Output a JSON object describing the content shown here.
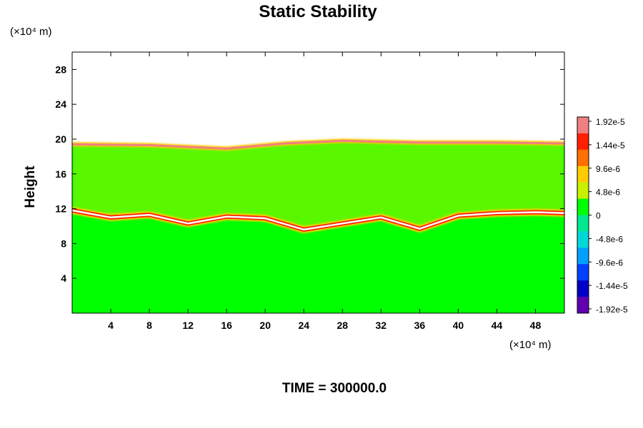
{
  "chart_data": {
    "type": "heatmap",
    "title": "Static Stability",
    "ylabel": "Height",
    "y_unit": "(×10⁴ m)",
    "x_unit": "(×10⁴ m)",
    "xlim": [
      0,
      51
    ],
    "ylim": [
      0,
      30
    ],
    "x_ticks": [
      "4",
      "8",
      "12",
      "16",
      "20",
      "24",
      "28",
      "32",
      "36",
      "40",
      "44",
      "48"
    ],
    "x_tick_values": [
      4,
      8,
      12,
      16,
      20,
      24,
      28,
      32,
      36,
      40,
      44,
      48
    ],
    "y_ticks": [
      "4",
      "8",
      "12",
      "16",
      "20",
      "24",
      "28"
    ],
    "y_tick_values": [
      4,
      8,
      12,
      16,
      20,
      24,
      28
    ],
    "colorbar": {
      "labels": [
        "1.92e-5",
        "1.44e-5",
        "9.6e-6",
        "4.8e-6",
        "0",
        "-4.8e-6",
        "-9.6e-6",
        "-1.44e-5",
        "-1.92e-5"
      ],
      "values": [
        1.92e-05,
        1.44e-05,
        9.6e-06,
        4.8e-06,
        0,
        -4.8e-06,
        -9.6e-06,
        -1.44e-05,
        -1.92e-05
      ],
      "colors": [
        "#f08080",
        "#ff2000",
        "#ff7000",
        "#ffcc00",
        "#c8f000",
        "#00ff00",
        "#00e890",
        "#00d8d8",
        "#00a0ff",
        "#0040ff",
        "#0000c8",
        "#6000b0"
      ]
    },
    "fields": {
      "background_color": "#00ff00",
      "background_value": 0,
      "upper_boundary_height": [
        [
          0,
          19.4
        ],
        [
          8,
          19.3
        ],
        [
          16,
          18.9
        ],
        [
          22,
          19.5
        ],
        [
          28,
          19.8
        ],
        [
          36,
          19.6
        ],
        [
          44,
          19.6
        ],
        [
          51,
          19.5
        ]
      ],
      "tropopause_layer_height": [
        [
          0,
          11.8
        ],
        [
          4,
          11.0
        ],
        [
          8,
          11.3
        ],
        [
          12,
          10.3
        ],
        [
          16,
          11.1
        ],
        [
          20,
          10.9
        ],
        [
          24,
          9.6
        ],
        [
          28,
          10.3
        ],
        [
          32,
          11.0
        ],
        [
          36,
          9.7
        ],
        [
          40,
          11.2
        ],
        [
          44,
          11.5
        ],
        [
          48,
          11.6
        ],
        [
          51,
          11.5
        ]
      ],
      "upper_boundary_value": 1.92e-05,
      "tropopause_layer_value": 1.92e-05,
      "upper_region_value": 4.8e-06,
      "lower_region_value": 0
    }
  },
  "footer": {
    "time_label": "TIME = 300000.0"
  }
}
